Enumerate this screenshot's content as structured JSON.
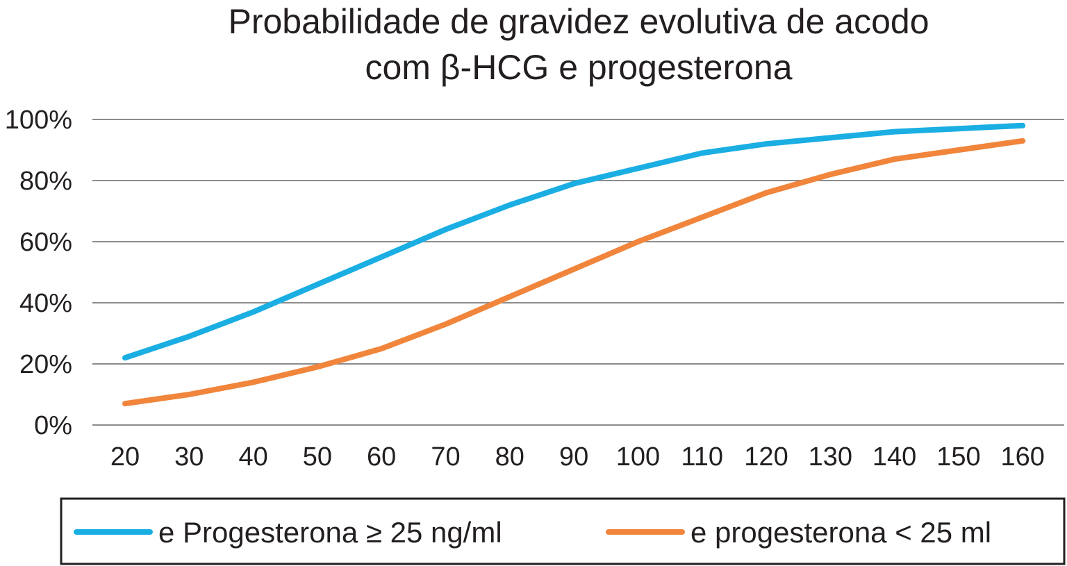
{
  "chart_data": {
    "type": "line",
    "title_lines": [
      "Probabilidade de gravidez evolutiva de acodo",
      "com β-HCG e progesterona"
    ],
    "xlabel": "",
    "ylabel": "",
    "x_categories": [
      "20",
      "30",
      "40",
      "50",
      "60",
      "70",
      "80",
      "90",
      "100",
      "110",
      "120",
      "130",
      "140",
      "150",
      "160"
    ],
    "y_ticks": [
      "0%",
      "20%",
      "40%",
      "60%",
      "80%",
      "100%"
    ],
    "ylim": [
      0,
      100
    ],
    "grid": "horizontal",
    "legend_position": "bottom",
    "series": [
      {
        "name": "e Progesterona ≥ 25 ng/ml",
        "color": "#1aaee3",
        "x": [
          20,
          30,
          40,
          50,
          60,
          70,
          80,
          90,
          100,
          110,
          120,
          130,
          140,
          150,
          160
        ],
        "values": [
          22,
          29,
          37,
          46,
          55,
          64,
          72,
          79,
          84,
          89,
          92,
          94,
          96,
          97,
          98
        ]
      },
      {
        "name": "e progesterona < 25 ml",
        "color": "#f0853b",
        "x": [
          20,
          30,
          40,
          50,
          60,
          70,
          80,
          90,
          100,
          110,
          120,
          130,
          140,
          150,
          160
        ],
        "values": [
          7,
          10,
          14,
          19,
          25,
          33,
          42,
          51,
          60,
          68,
          76,
          82,
          87,
          90,
          93
        ]
      }
    ]
  }
}
